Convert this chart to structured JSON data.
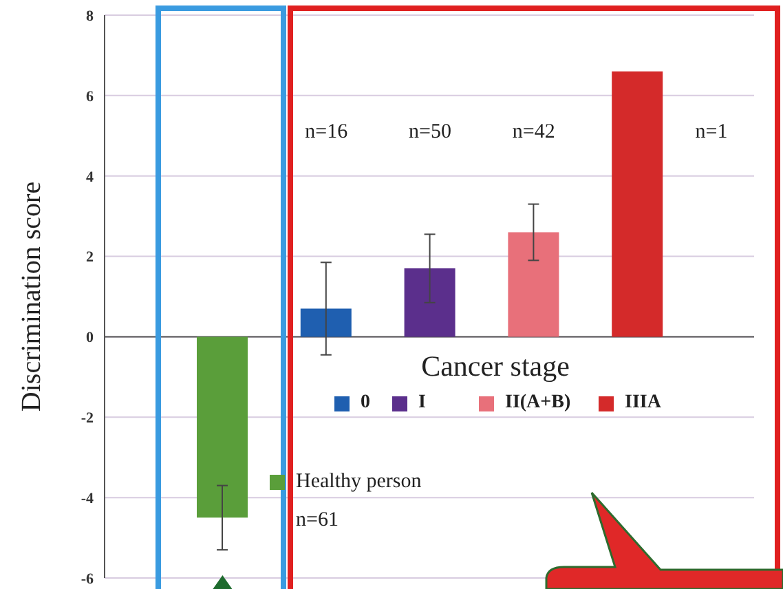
{
  "chart_data": {
    "type": "bar",
    "ylabel": "Discrimination score",
    "legend_title": "Cancer stage",
    "categories": [
      null,
      null,
      null,
      null,
      null
    ],
    "series": [
      {
        "name": "Healthy person",
        "color": "#5a9e3a",
        "values": [
          -4.5,
          null,
          null,
          null,
          null
        ],
        "errors": [
          0.8,
          null,
          null,
          null,
          null
        ]
      },
      {
        "name": "0",
        "color": "#1f5fb0",
        "values": [
          null,
          0.7,
          null,
          null,
          null
        ],
        "errors": [
          null,
          1.15,
          null,
          null,
          null
        ]
      },
      {
        "name": "I",
        "color": "#5b2f8c",
        "values": [
          null,
          null,
          1.7,
          null,
          null
        ],
        "errors": [
          null,
          null,
          0.85,
          null,
          null
        ]
      },
      {
        "name": "II(A+B)",
        "color": "#e8707a",
        "values": [
          null,
          null,
          null,
          2.6,
          null
        ],
        "errors": [
          null,
          null,
          null,
          0.7,
          null
        ]
      },
      {
        "name": "IIIA",
        "color": "#d42a2a",
        "values": [
          null,
          null,
          null,
          null,
          6.6
        ],
        "errors": [
          null,
          null,
          null,
          null,
          null
        ]
      }
    ],
    "annotations": [
      "n=61",
      "n=16",
      "n=50",
      "n=42",
      "n=1"
    ],
    "ylim": [
      -6,
      8
    ],
    "yticks": [
      -6,
      -4,
      -2,
      0,
      2,
      4,
      6,
      8
    ],
    "grid": "y",
    "legend": "bottom",
    "tick_labels": "y"
  }
}
